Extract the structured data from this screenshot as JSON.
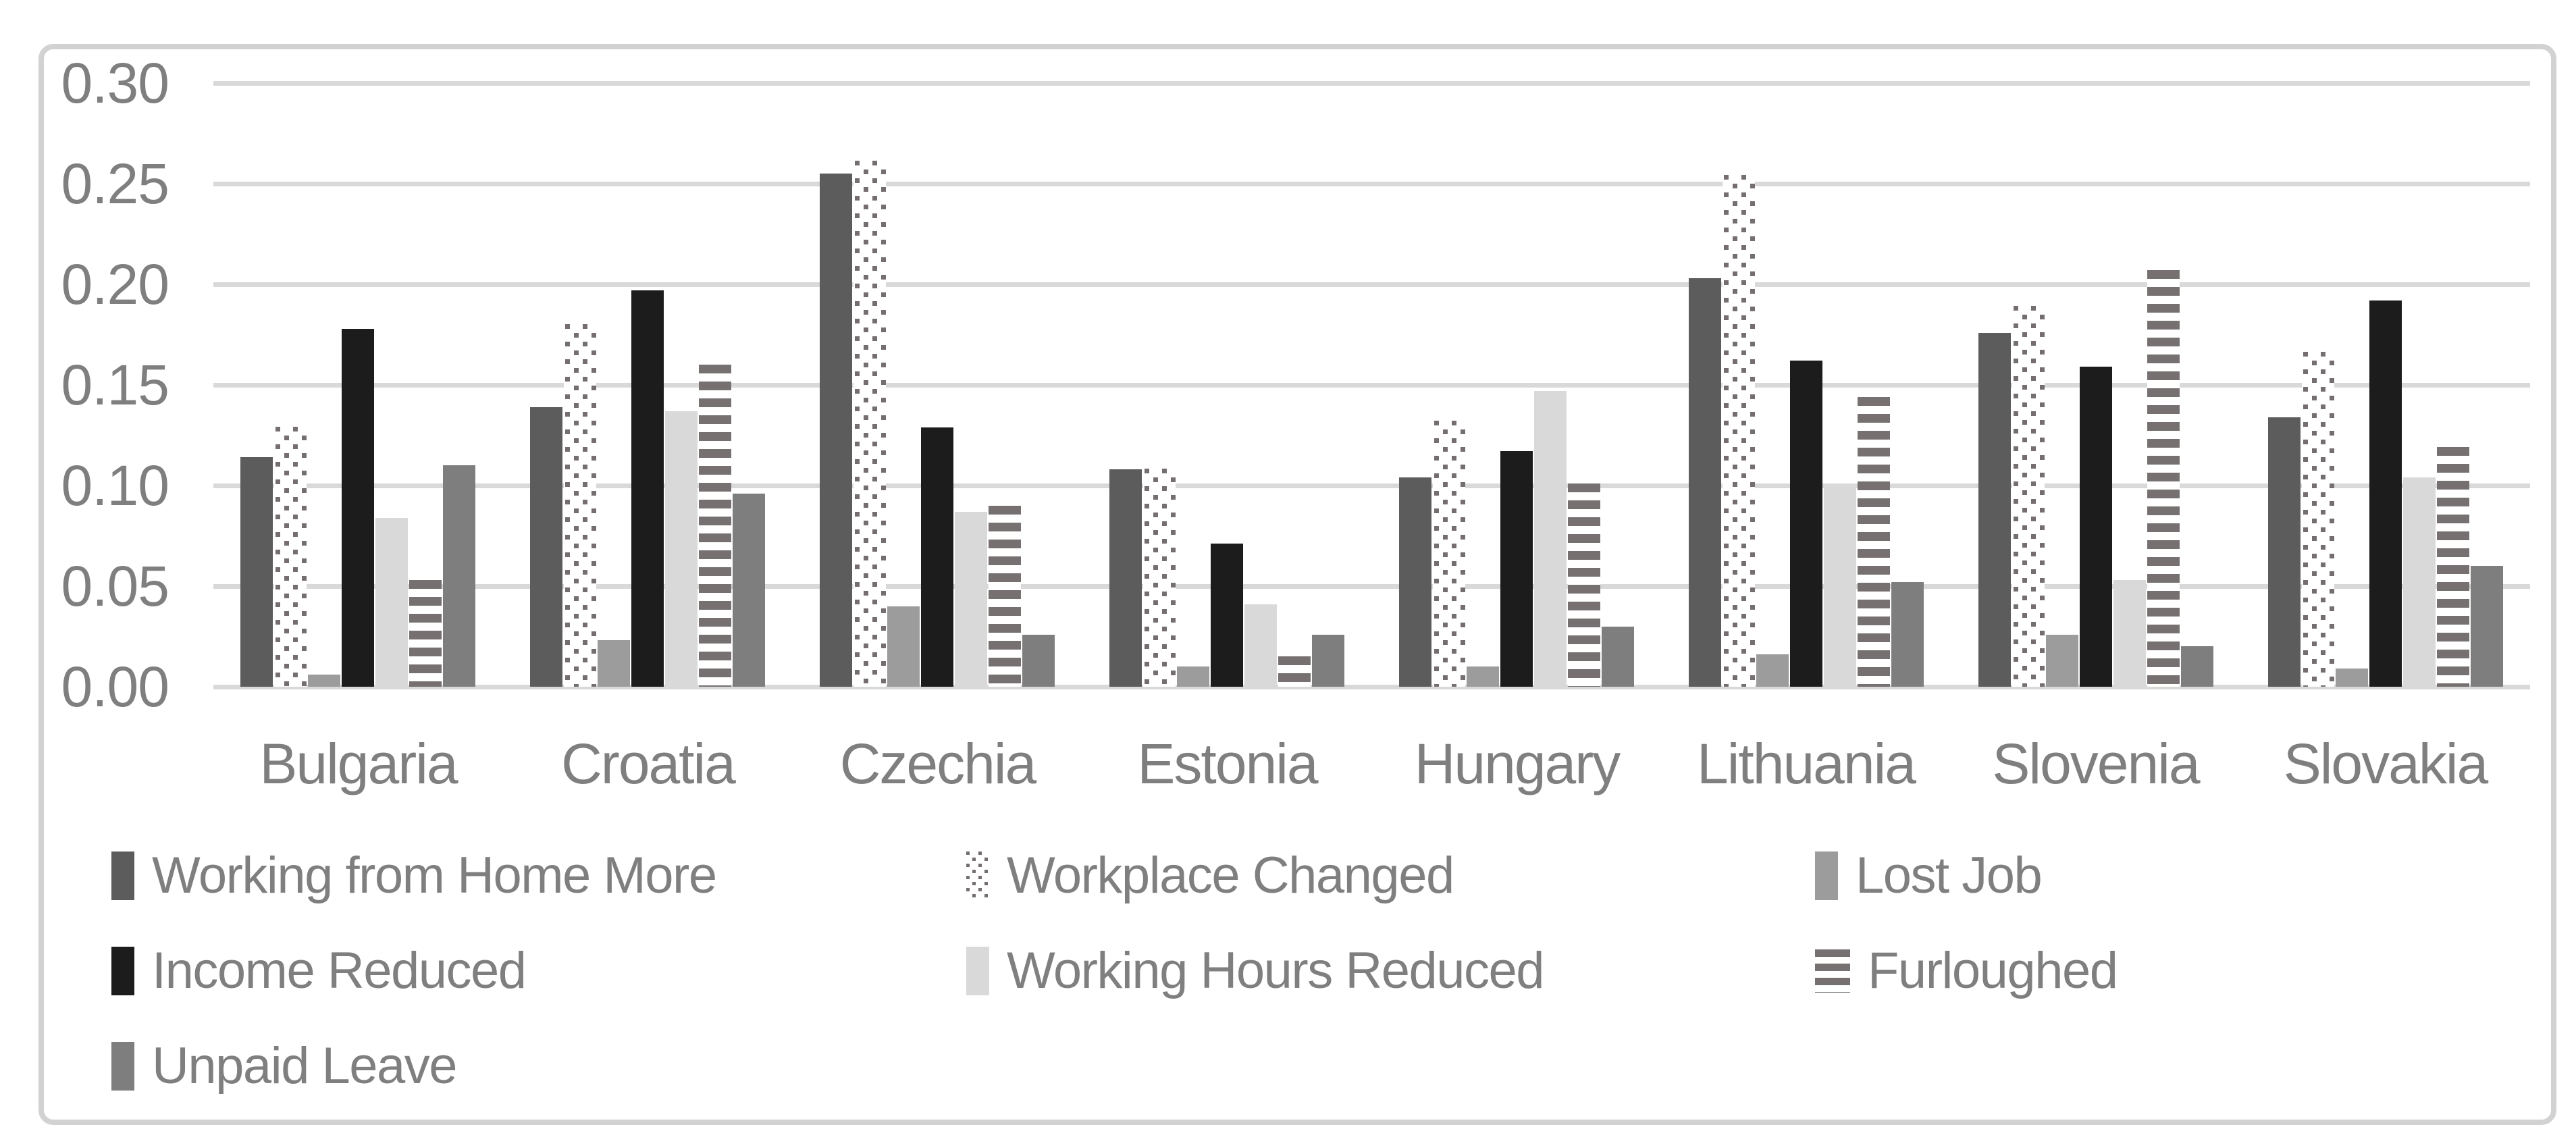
{
  "chart_data": {
    "type": "bar",
    "title": "",
    "categories": [
      "Bulgaria",
      "Croatia",
      "Czechia",
      "Estonia",
      "Hungary",
      "Lithuania",
      "Slovenia",
      "Slovakia"
    ],
    "series": [
      {
        "name": "Working from Home More",
        "pattern": "solid",
        "color": "#5c5c5c",
        "values": [
          0.114,
          0.139,
          0.255,
          0.108,
          0.104,
          0.203,
          0.176,
          0.134
        ]
      },
      {
        "name": "Workplace Changed",
        "pattern": "dots",
        "color": "#756e70",
        "values": [
          0.13,
          0.181,
          0.262,
          0.109,
          0.133,
          0.255,
          0.19,
          0.167
        ]
      },
      {
        "name": "Lost Job",
        "pattern": "solid",
        "color": "#9c9c9c",
        "values": [
          0.006,
          0.023,
          0.04,
          0.01,
          0.01,
          0.016,
          0.026,
          0.009
        ]
      },
      {
        "name": "Income Reduced",
        "pattern": "solid",
        "color": "#1c1c1c",
        "values": [
          0.178,
          0.197,
          0.129,
          0.071,
          0.117,
          0.162,
          0.159,
          0.192
        ]
      },
      {
        "name": "Working Hours Reduced",
        "pattern": "solid",
        "color": "#d9d9d9",
        "values": [
          0.084,
          0.137,
          0.087,
          0.041,
          0.147,
          0.101,
          0.053,
          0.104
        ]
      },
      {
        "name": "Furloughed",
        "pattern": "stripes",
        "color": "#767070",
        "values": [
          0.053,
          0.16,
          0.09,
          0.015,
          0.101,
          0.144,
          0.207,
          0.119
        ]
      },
      {
        "name": "Unpaid Leave",
        "pattern": "solid",
        "color": "#7e7e7e",
        "values": [
          0.11,
          0.096,
          0.026,
          0.026,
          0.03,
          0.052,
          0.02,
          0.06
        ]
      }
    ],
    "ylabel": "",
    "xlabel": "",
    "ylim": [
      0.0,
      0.3
    ],
    "ytick_step": 0.05,
    "ytick_labels": [
      "0.30",
      "0.25",
      "0.20",
      "0.15",
      "0.10",
      "0.05",
      "0.00"
    ],
    "grid": true,
    "legend_position": "bottom"
  },
  "colors": {
    "text": "#7f7f7f",
    "gridline": "#d9d9d9",
    "frame_border": "#d2d2d2",
    "background": "#ffffff"
  }
}
